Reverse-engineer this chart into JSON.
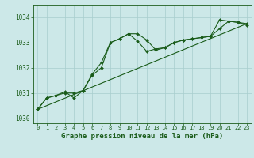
{
  "title": "Graphe pression niveau de la mer (hPa)",
  "bg_color": "#cce8e8",
  "line_color": "#1a5c1a",
  "grid_color": "#a8cece",
  "xlabel_color": "#1a5c1a",
  "xlim": [
    -0.5,
    23.5
  ],
  "ylim": [
    1029.8,
    1034.5
  ],
  "yticks": [
    1030,
    1031,
    1032,
    1033,
    1034
  ],
  "xticks": [
    0,
    1,
    2,
    3,
    4,
    5,
    6,
    7,
    8,
    9,
    10,
    11,
    12,
    13,
    14,
    15,
    16,
    17,
    18,
    19,
    20,
    21,
    22,
    23
  ],
  "series1_x": [
    0,
    1,
    2,
    3,
    4,
    5,
    6,
    7,
    8,
    9,
    10,
    11,
    12,
    13,
    14,
    15,
    16,
    17,
    18,
    19,
    20,
    21,
    22,
    23
  ],
  "series1_y": [
    1030.35,
    1030.8,
    1030.9,
    1031.05,
    1030.8,
    1031.1,
    1031.75,
    1032.2,
    1033.0,
    1033.15,
    1033.35,
    1033.05,
    1032.65,
    1032.75,
    1032.8,
    1033.0,
    1033.1,
    1033.15,
    1033.2,
    1033.25,
    1033.9,
    1033.85,
    1033.8,
    1033.75
  ],
  "series2_x": [
    0,
    1,
    2,
    3,
    4,
    5,
    6,
    7,
    8,
    9,
    10,
    11,
    12,
    13,
    14,
    15,
    16,
    17,
    18,
    19,
    20,
    21,
    22,
    23
  ],
  "series2_y": [
    1030.35,
    1030.8,
    1030.9,
    1031.0,
    1031.0,
    1031.1,
    1031.7,
    1032.0,
    1033.0,
    1033.15,
    1033.35,
    1033.35,
    1033.1,
    1032.7,
    1032.8,
    1033.0,
    1033.1,
    1033.15,
    1033.2,
    1033.25,
    1033.55,
    1033.85,
    1033.8,
    1033.7
  ],
  "trend_x": [
    0,
    23
  ],
  "trend_y": [
    1030.35,
    1033.75
  ],
  "marker": "D",
  "markersize": 2.0,
  "linewidth": 0.8
}
